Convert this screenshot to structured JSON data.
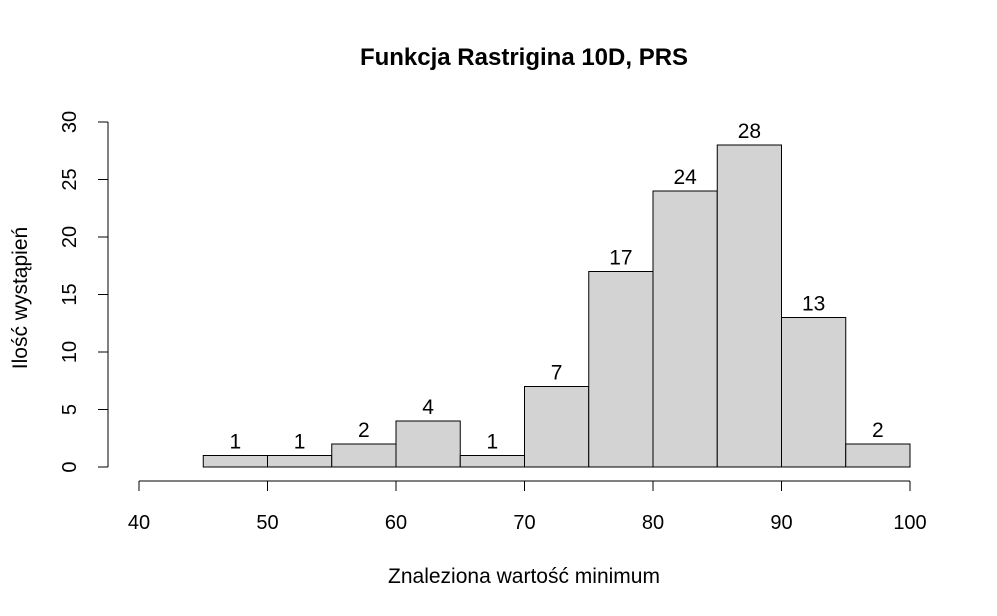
{
  "chart_data": {
    "type": "bar",
    "title": "Funkcja Rastrigina 10D, PRS",
    "xlabel": "Znaleziona wartość minimum",
    "ylabel": "Ilość wystąpień",
    "bins": [
      {
        "from": 45,
        "to": 50,
        "count": 1
      },
      {
        "from": 50,
        "to": 55,
        "count": 1
      },
      {
        "from": 55,
        "to": 60,
        "count": 2
      },
      {
        "from": 60,
        "to": 65,
        "count": 4
      },
      {
        "from": 65,
        "to": 70,
        "count": 1
      },
      {
        "from": 70,
        "to": 75,
        "count": 7
      },
      {
        "from": 75,
        "to": 80,
        "count": 17
      },
      {
        "from": 80,
        "to": 85,
        "count": 24
      },
      {
        "from": 85,
        "to": 90,
        "count": 28
      },
      {
        "from": 90,
        "to": 95,
        "count": 13
      },
      {
        "from": 95,
        "to": 100,
        "count": 2
      }
    ],
    "xlim": [
      40,
      100
    ],
    "ylim": [
      0,
      30
    ],
    "x_ticks": [
      "40",
      "50",
      "60",
      "70",
      "80",
      "90",
      "100"
    ],
    "y_ticks": [
      "0",
      "5",
      "10",
      "15",
      "20",
      "25",
      "30"
    ],
    "bar_color": "#d3d3d3",
    "grid": false
  }
}
